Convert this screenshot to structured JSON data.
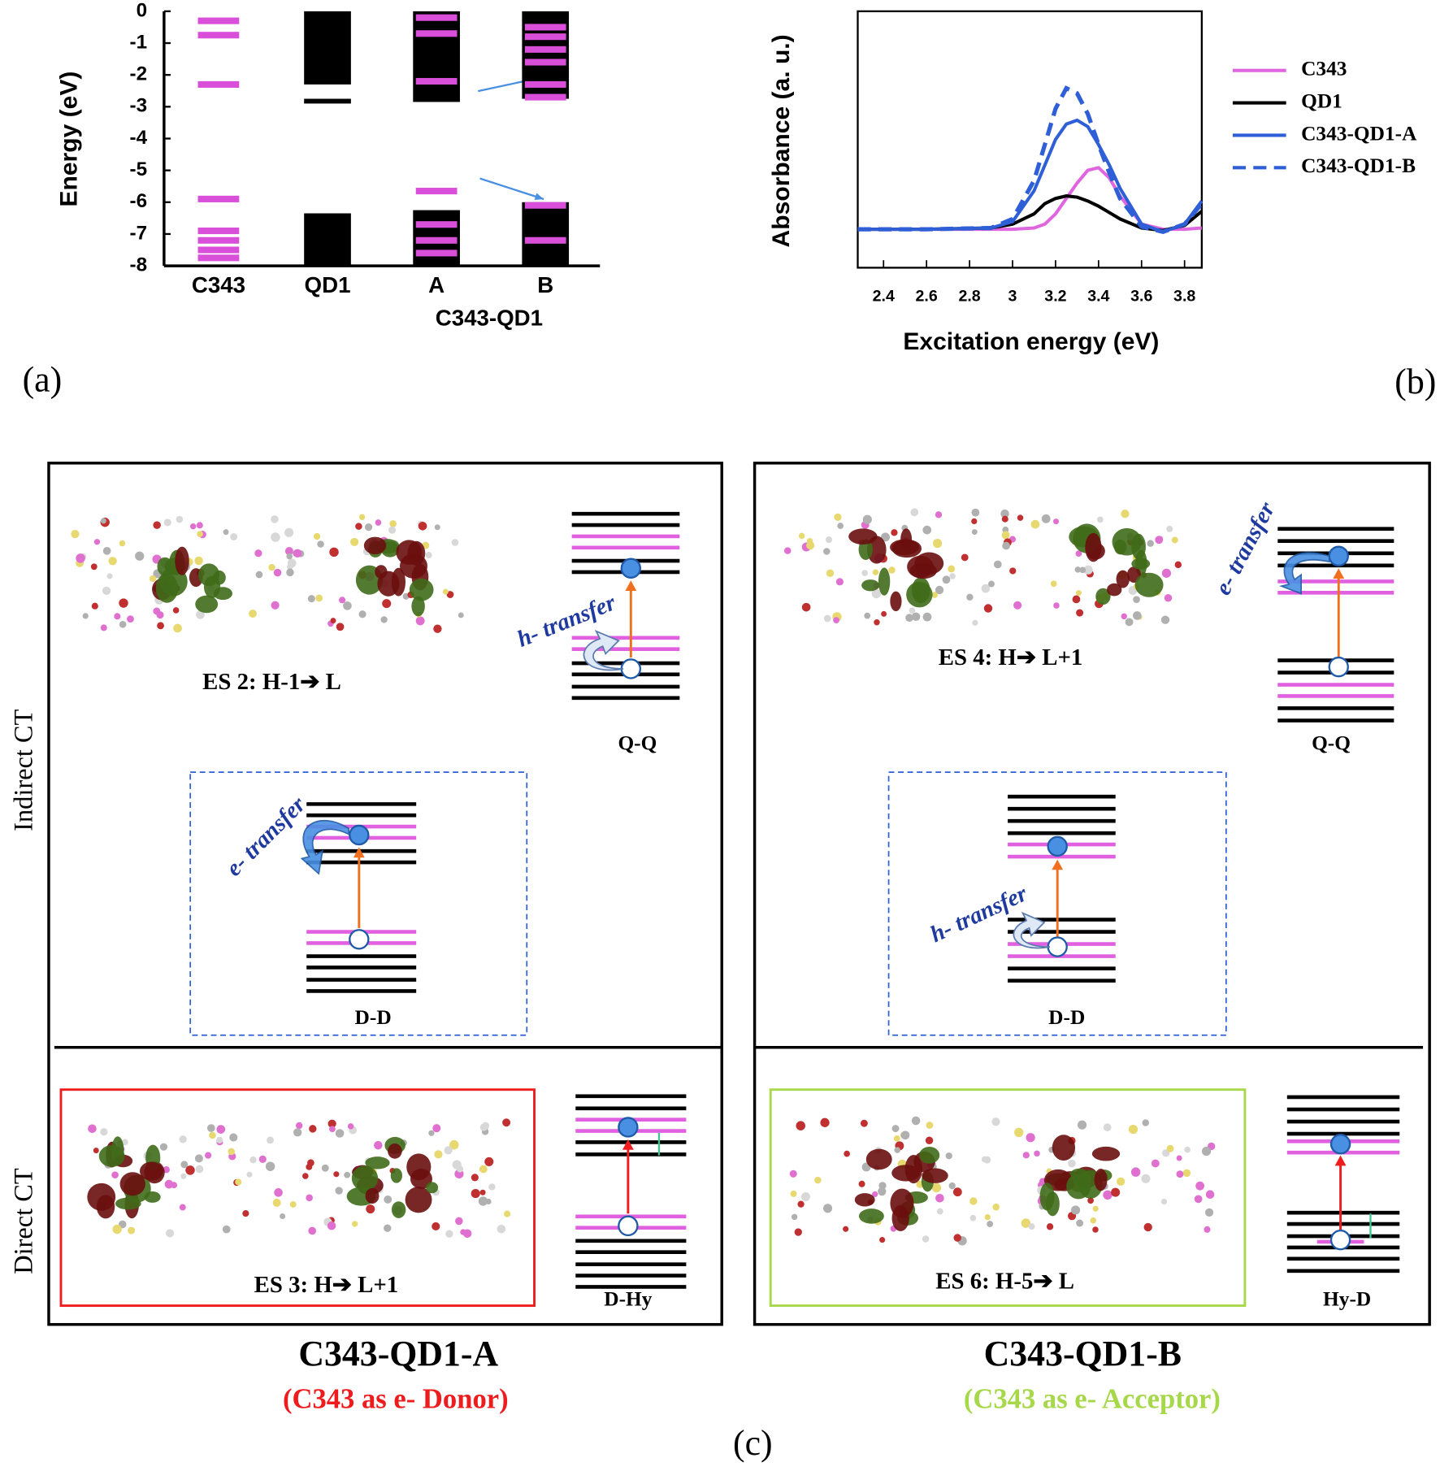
{
  "chart_data": [
    {
      "type": "energy-levels",
      "y_label": "Energy (eV)",
      "categories": [
        "C343",
        "QD1",
        "A",
        "B"
      ],
      "group_label": "C343-QD1",
      "ylim": [
        -8,
        0
      ],
      "yticks": [
        0,
        -1,
        -2,
        -3,
        -4,
        -5,
        -6,
        -7,
        -8
      ],
      "band_color": "#000000",
      "level_color": "#d94fd9",
      "bands": [
        [],
        [
          [
            0,
            -2.3
          ],
          [
            -2.75,
            -2.9
          ],
          [
            -6.35,
            -8
          ]
        ],
        [
          [
            0,
            -2.85
          ],
          [
            -6.25,
            -8
          ]
        ],
        [
          [
            0,
            -2.75
          ],
          [
            -6,
            -8
          ]
        ]
      ],
      "levels": [
        [
          -0.3,
          -0.75,
          -2.3,
          -5.9,
          -6.9,
          -7.2,
          -7.5,
          -7.75
        ],
        [],
        [
          -0.2,
          -0.7,
          -2.2,
          -5.65,
          -6.7,
          -7.2,
          -7.6
        ],
        [
          -0.5,
          -0.8,
          -1.2,
          -1.6,
          -2.3,
          -2.7,
          -6.1,
          -7.2
        ]
      ]
    },
    {
      "type": "line",
      "x_label": "Excitation energy (eV)",
      "y_label": "Absorbance (a. u.)",
      "xlim": [
        2.28,
        3.88
      ],
      "xticks": [
        2.4,
        2.6,
        2.8,
        3,
        3.2,
        3.4,
        3.6,
        3.8
      ],
      "ylim": [
        0,
        1
      ],
      "legend": "right",
      "x": [
        2.28,
        2.6,
        2.9,
        3.0,
        3.1,
        3.15,
        3.2,
        3.25,
        3.3,
        3.35,
        3.4,
        3.45,
        3.5,
        3.6,
        3.7,
        3.8,
        3.88
      ],
      "series": [
        {
          "name": "C343",
          "color": "#e066e0",
          "dash": false,
          "values": [
            0.15,
            0.15,
            0.15,
            0.15,
            0.155,
            0.17,
            0.21,
            0.27,
            0.33,
            0.38,
            0.39,
            0.35,
            0.28,
            0.17,
            0.15,
            0.15,
            0.155
          ]
        },
        {
          "name": "QD1",
          "color": "#000000",
          "dash": false,
          "values": [
            0.15,
            0.15,
            0.155,
            0.17,
            0.21,
            0.25,
            0.27,
            0.28,
            0.275,
            0.26,
            0.24,
            0.215,
            0.19,
            0.155,
            0.145,
            0.165,
            0.22
          ]
        },
        {
          "name": "C343-QD1-A",
          "color": "#2f5fd6",
          "dash": false,
          "values": [
            0.15,
            0.15,
            0.155,
            0.18,
            0.3,
            0.4,
            0.5,
            0.56,
            0.575,
            0.55,
            0.48,
            0.4,
            0.31,
            0.17,
            0.14,
            0.17,
            0.26
          ]
        },
        {
          "name": "C343-QD1-B",
          "color": "#2f5fd6",
          "dash": true,
          "values": [
            0.15,
            0.15,
            0.155,
            0.19,
            0.34,
            0.48,
            0.62,
            0.7,
            0.68,
            0.6,
            0.48,
            0.37,
            0.27,
            0.16,
            0.14,
            0.17,
            0.25
          ]
        }
      ]
    }
  ],
  "panel_labels": [
    "(a)",
    "(b)",
    "(c)"
  ],
  "panel_c": {
    "row_labels": [
      "Indirect CT",
      "Direct CT"
    ],
    "systems": [
      {
        "title": "C343-QD1-A",
        "subtitle": "(C343 as e- Donor)",
        "subtitle_color": "#ee1c1c",
        "indirect_state": "ES 2: H-1➔ L",
        "qq_label": "Q-Q",
        "qq_transfer": "h- transfer",
        "dd_label": "D-D",
        "dd_transfer": "e- transfer",
        "direct_state": "ES 3: H➔ L+1",
        "direct_label": "D-Hy"
      },
      {
        "title": "C343-QD1-B",
        "subtitle": "(C343 as e- Acceptor)",
        "subtitle_color": "#a6d84a",
        "indirect_state": "ES 4: H➔ L+1",
        "qq_label": "Q-Q",
        "qq_transfer": "e- transfer",
        "dd_label": "D-D",
        "dd_transfer": "h- transfer",
        "direct_state": "ES 6: H-5➔ L",
        "direct_label": "Hy-D"
      }
    ]
  }
}
